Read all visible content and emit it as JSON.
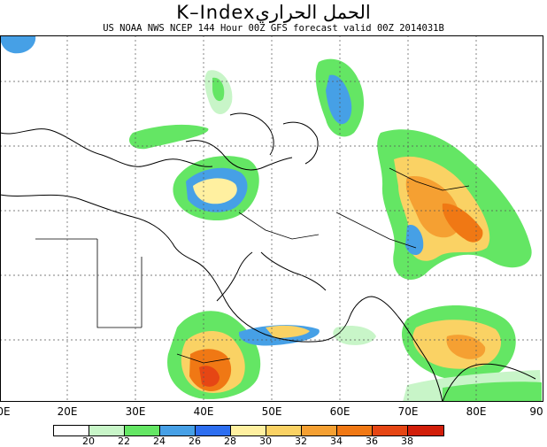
{
  "title": "K–Indexالحمل الحراري",
  "subtitle": "US NOAA NWS NCEP 144 Hour 00Z GFS forecast valid 00Z 2014031B",
  "x_axis": {
    "ticks": [
      "0E",
      "20E",
      "30E",
      "40E",
      "50E",
      "60E",
      "70E",
      "80E",
      "90"
    ]
  },
  "colorbar": {
    "colors": [
      "#ffffff",
      "#c8f5c8",
      "#64e664",
      "#46a0e6",
      "#2d6ef0",
      "#fff0a0",
      "#fad264",
      "#f5a032",
      "#f07814",
      "#e64614",
      "#d21e0a"
    ],
    "labels": [
      "20",
      "22",
      "24",
      "26",
      "28",
      "30",
      "32",
      "34",
      "36",
      "38"
    ]
  }
}
